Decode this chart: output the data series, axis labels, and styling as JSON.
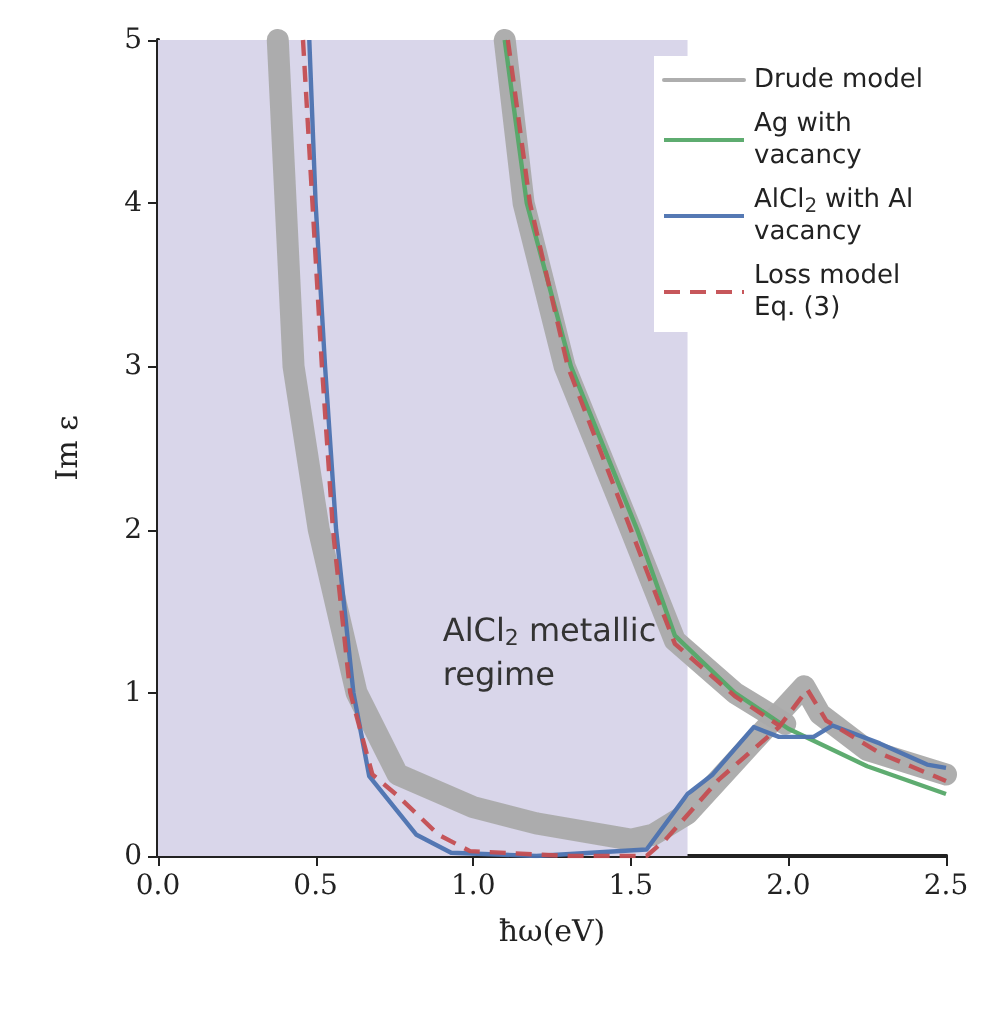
{
  "chart_data": {
    "type": "line",
    "xlabel": "ħω(eV)",
    "ylabel": "Im ε",
    "xlim": [
      0,
      2.5
    ],
    "ylim": [
      0,
      5
    ],
    "xticks": [
      {
        "value": 0,
        "label": "0.0"
      },
      {
        "value": 0.5,
        "label": "0.5"
      },
      {
        "value": 1,
        "label": "1.0"
      },
      {
        "value": 1.5,
        "label": "1.5"
      },
      {
        "value": 2,
        "label": "2.0"
      },
      {
        "value": 2.5,
        "label": "2.5"
      }
    ],
    "yticks": [
      0,
      1,
      2,
      3,
      4,
      5
    ],
    "grid": false,
    "legend": "top right",
    "bands": [
      {
        "axis": "x",
        "from": 0,
        "to": 1.68,
        "label": "AlCl$_{2}$ metallic regime",
        "color": "#d9d6ea"
      }
    ],
    "series": [
      {
        "name": "Drude model",
        "color": "#aaaaaa",
        "x": [
          0.38,
          0.43,
          0.51,
          0.63,
          0.76,
          1.0,
          1.2,
          1.5,
          1.57,
          1.68,
          1.95,
          2.05,
          2.1,
          2.25,
          2.5
        ],
        "values": [
          5,
          3,
          2,
          1,
          0.5,
          0.3,
          0.2,
          0.1,
          0.13,
          0.26,
          0.83,
          1.04,
          0.87,
          0.65,
          0.5
        ]
      },
      {
        "color": "#aaaaaa",
        "x": [
          1.1,
          1.16,
          1.29,
          1.5,
          1.64,
          1.83,
          1.99
        ],
        "values": [
          5,
          4,
          3,
          2,
          1.32,
          1.0,
          0.81
        ]
      },
      {
        "name": "Ag with vacancy",
        "color": "#55a868",
        "x": [
          1.1,
          1.17,
          1.31,
          1.52,
          1.64,
          1.83,
          2.0,
          2.25,
          2.5
        ],
        "values": [
          5,
          4,
          3,
          2,
          1.35,
          1.0,
          0.78,
          0.55,
          0.38
        ]
      },
      {
        "name": "AlCl$_{2}$ with Al vacancy",
        "color": "#4c72b0",
        "x": [
          0.48,
          0.5,
          0.53,
          0.565,
          0.62,
          0.67,
          0.82,
          0.93,
          1.2,
          1.55,
          1.68,
          1.76,
          1.89,
          1.97,
          2.08,
          2.14,
          2.29,
          2.44,
          2.5
        ],
        "values": [
          5,
          4,
          3,
          2,
          1,
          0.49,
          0.13,
          0.02,
          0,
          0.04,
          0.38,
          0.5,
          0.79,
          0.73,
          0.73,
          0.8,
          0.69,
          0.56,
          0.54
        ]
      },
      {
        "name": "Loss model Eq. (3)",
        "color": "#c44e52",
        "line_style": "dashed",
        "x": [
          0.46,
          0.49,
          0.52,
          0.555,
          0.61,
          0.68,
          0.76,
          0.89,
          0.99,
          1.3,
          1.55,
          1.61,
          1.78,
          1.97,
          2.06,
          2.12,
          2.29,
          2.5
        ],
        "values": [
          5,
          4,
          3,
          2,
          1,
          0.5,
          0.37,
          0.13,
          0.03,
          0,
          0,
          0.1,
          0.47,
          0.79,
          1.02,
          0.83,
          0.63,
          0.46
        ]
      },
      {
        "color": "#c44e52",
        "line_style": "dashed",
        "x": [
          1.11,
          1.18,
          1.3,
          1.5,
          1.64,
          1.83,
          1.97
        ],
        "values": [
          5,
          4,
          3,
          2,
          1.3,
          0.98,
          0.8
        ]
      }
    ]
  }
}
